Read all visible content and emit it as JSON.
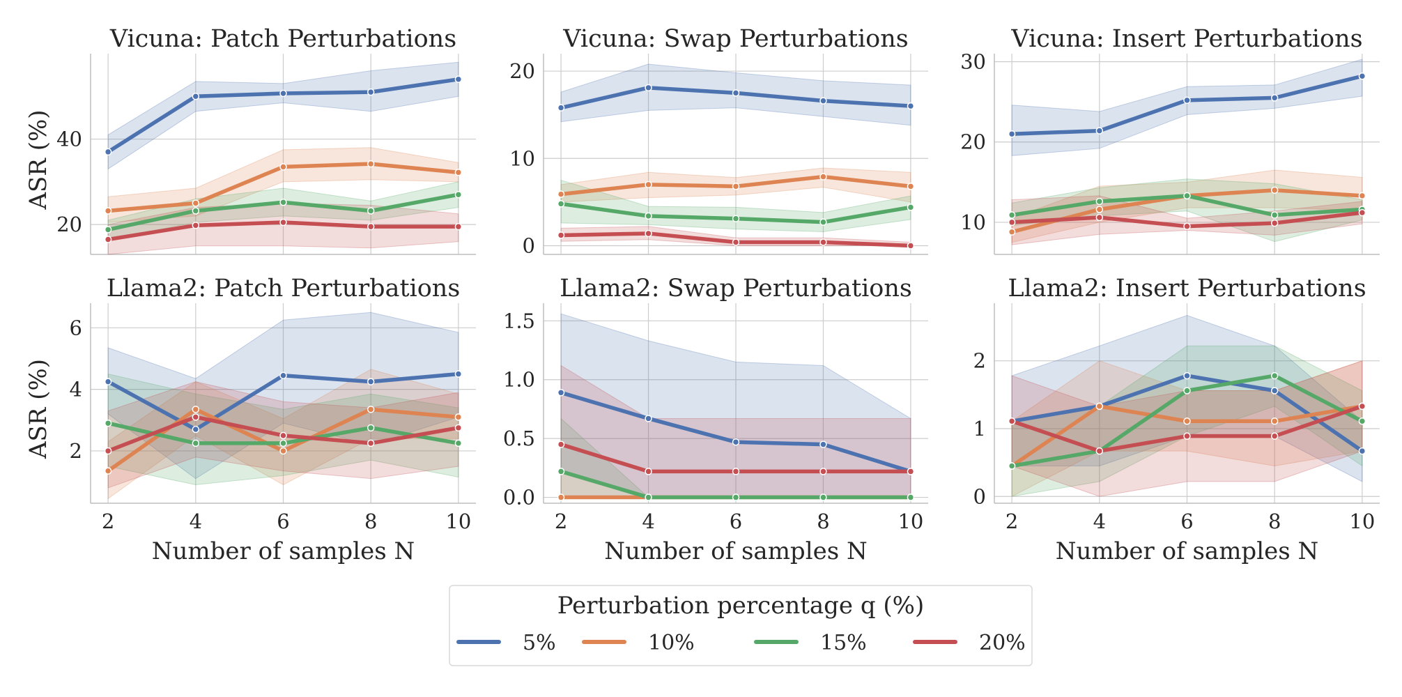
{
  "legend": {
    "title": "Perturbation percentage q (%)",
    "series_names": [
      "5%",
      "10%",
      "15%",
      "20%"
    ],
    "colors": [
      "#4c72b0",
      "#dd8452",
      "#55a868",
      "#c44e52"
    ]
  },
  "chart_data": [
    {
      "type": "line",
      "title": "Vicuna: Patch Perturbations",
      "xlabel": "",
      "ylabel": "ASR (%)",
      "x": [
        2,
        4,
        6,
        8,
        10
      ],
      "xlim": [
        1.6,
        10.4
      ],
      "ylim": [
        13,
        60
      ],
      "yticks": [
        20,
        40
      ],
      "xticks": [],
      "grid": true,
      "series": [
        {
          "name": "5%",
          "values": [
            37,
            50,
            50.7,
            51,
            54
          ],
          "lower": [
            33,
            46.5,
            48.5,
            46.5,
            50
          ],
          "upper": [
            41,
            53.5,
            53,
            56,
            58
          ]
        },
        {
          "name": "10%",
          "values": [
            23.2,
            25,
            33.5,
            34.2,
            32.2
          ],
          "lower": [
            20.5,
            22,
            30,
            30.5,
            30
          ],
          "upper": [
            26.5,
            28.5,
            37.5,
            38,
            34.5
          ]
        },
        {
          "name": "15%",
          "values": [
            18.8,
            23.2,
            25.2,
            23.2,
            27
          ],
          "lower": [
            16.5,
            20.5,
            22,
            21,
            24
          ],
          "upper": [
            21,
            26,
            28.5,
            25.5,
            30
          ]
        },
        {
          "name": "20%",
          "values": [
            16.5,
            19.8,
            20.5,
            19.5,
            19.5
          ],
          "lower": [
            13,
            15,
            15,
            14.5,
            16
          ],
          "upper": [
            20,
            24,
            25,
            24.5,
            22.5
          ]
        }
      ]
    },
    {
      "type": "line",
      "title": "Vicuna: Swap Perturbations",
      "xlabel": "",
      "ylabel": "",
      "x": [
        2,
        4,
        6,
        8,
        10
      ],
      "xlim": [
        1.6,
        10.4
      ],
      "ylim": [
        -1,
        22
      ],
      "yticks": [
        0,
        10,
        20
      ],
      "xticks": [],
      "grid": true,
      "series": [
        {
          "name": "5%",
          "values": [
            15.8,
            18.1,
            17.5,
            16.6,
            16
          ],
          "lower": [
            14.2,
            15.5,
            15.8,
            14.8,
            13.8
          ],
          "upper": [
            17.6,
            20.8,
            19.8,
            18.9,
            18.4
          ]
        },
        {
          "name": "10%",
          "values": [
            5.9,
            7,
            6.8,
            7.9,
            6.8
          ],
          "lower": [
            5,
            5.5,
            5.8,
            6.7,
            5
          ],
          "upper": [
            7,
            8.4,
            7.8,
            8.9,
            8.4
          ]
        },
        {
          "name": "15%",
          "values": [
            4.8,
            3.4,
            3.1,
            2.7,
            4.4
          ],
          "lower": [
            2.6,
            2.4,
            1.9,
            1.6,
            3
          ],
          "upper": [
            7.5,
            4.5,
            4.4,
            3.8,
            5.7
          ]
        },
        {
          "name": "20%",
          "values": [
            1.2,
            1.4,
            0.4,
            0.4,
            0
          ],
          "lower": [
            0.5,
            0.7,
            0,
            0,
            0
          ],
          "upper": [
            2,
            2.2,
            0.9,
            0.9,
            0.4
          ]
        }
      ]
    },
    {
      "type": "line",
      "title": "Vicuna: Insert Perturbations",
      "xlabel": "",
      "ylabel": "",
      "x": [
        2,
        4,
        6,
        8,
        10
      ],
      "xlim": [
        1.6,
        10.4
      ],
      "ylim": [
        6,
        31
      ],
      "yticks": [
        10,
        20,
        30
      ],
      "xticks": [],
      "grid": true,
      "series": [
        {
          "name": "5%",
          "values": [
            21,
            21.4,
            25.2,
            25.5,
            28.2
          ],
          "lower": [
            18.3,
            19.2,
            23.4,
            24.2,
            25.7
          ],
          "upper": [
            24.6,
            23.8,
            26.9,
            27.1,
            30.3
          ]
        },
        {
          "name": "10%",
          "values": [
            8.8,
            11.6,
            13.3,
            14,
            13.3
          ],
          "lower": [
            7.5,
            10,
            11.8,
            11.8,
            11.5
          ],
          "upper": [
            10.5,
            14.5,
            15,
            16.5,
            15.6
          ]
        },
        {
          "name": "15%",
          "values": [
            10.9,
            12.6,
            13.3,
            10.9,
            11.6
          ],
          "lower": [
            9.6,
            10.8,
            11.4,
            7.6,
            10.3
          ],
          "upper": [
            12.4,
            14.3,
            15.4,
            14.8,
            12.8
          ]
        },
        {
          "name": "20%",
          "values": [
            10,
            10.6,
            9.5,
            9.9,
            11.2
          ],
          "lower": [
            7.2,
            8.5,
            9,
            8.4,
            9.8
          ],
          "upper": [
            12.8,
            13.3,
            10.5,
            11.4,
            12.6
          ]
        }
      ]
    },
    {
      "type": "line",
      "title": "Llama2: Patch Perturbations",
      "xlabel": "Number of samples N",
      "ylabel": "ASR (%)",
      "x": [
        2,
        4,
        6,
        8,
        10
      ],
      "xlim": [
        1.6,
        10.4
      ],
      "ylim": [
        0.3,
        6.8
      ],
      "yticks": [
        2,
        4,
        6
      ],
      "xticks": [
        2,
        4,
        6,
        8,
        10
      ],
      "grid": true,
      "series": [
        {
          "name": "5%",
          "values": [
            4.25,
            2.7,
            4.45,
            4.25,
            4.5
          ],
          "lower": [
            3.2,
            1.1,
            2.9,
            2.2,
            3.1
          ],
          "upper": [
            5.35,
            4.35,
            6.25,
            6.5,
            5.85
          ]
        },
        {
          "name": "10%",
          "values": [
            1.35,
            3.35,
            2.0,
            3.35,
            3.1
          ],
          "lower": [
            0.45,
            2.5,
            0.9,
            2.4,
            2.4
          ],
          "upper": [
            2.3,
            4.25,
            3.05,
            4.65,
            3.85
          ]
        },
        {
          "name": "15%",
          "values": [
            2.9,
            2.25,
            2.25,
            2.75,
            2.25
          ],
          "lower": [
            1.5,
            0.9,
            1.2,
            1.7,
            1.15
          ],
          "upper": [
            4.5,
            3.85,
            3.35,
            3.85,
            3.4
          ]
        },
        {
          "name": "20%",
          "values": [
            2.0,
            3.1,
            2.5,
            2.25,
            2.75
          ],
          "lower": [
            0.8,
            1.8,
            1.35,
            1.1,
            1.5
          ],
          "upper": [
            3.3,
            4.25,
            3.6,
            3.4,
            3.9
          ]
        }
      ]
    },
    {
      "type": "line",
      "title": "Llama2: Swap Perturbations",
      "xlabel": "Number of samples N",
      "ylabel": "",
      "x": [
        2,
        4,
        6,
        8,
        10
      ],
      "xlim": [
        1.6,
        10.4
      ],
      "ylim": [
        -0.05,
        1.65
      ],
      "yticks": [
        0.0,
        0.5,
        1.0,
        1.5
      ],
      "xticks": [
        2,
        4,
        6,
        8,
        10
      ],
      "grid": true,
      "series": [
        {
          "name": "5%",
          "values": [
            0.89,
            0.67,
            0.47,
            0.45,
            0.22
          ],
          "lower": [
            0.22,
            0,
            0,
            0,
            0
          ],
          "upper": [
            1.56,
            1.33,
            1.15,
            1.12,
            0.67
          ]
        },
        {
          "name": "10%",
          "values": [
            0,
            0,
            0,
            0,
            0
          ],
          "lower": [
            0,
            0,
            0,
            0,
            0
          ],
          "upper": [
            0,
            0,
            0,
            0,
            0
          ]
        },
        {
          "name": "15%",
          "values": [
            0.22,
            0,
            0,
            0,
            0
          ],
          "lower": [
            0,
            0,
            0,
            0,
            0
          ],
          "upper": [
            0.67,
            0,
            0,
            0,
            0
          ]
        },
        {
          "name": "20%",
          "values": [
            0.45,
            0.22,
            0.22,
            0.22,
            0.22
          ],
          "lower": [
            0,
            0,
            0,
            0,
            0
          ],
          "upper": [
            1.12,
            0.67,
            0.67,
            0.67,
            0.67
          ]
        }
      ]
    },
    {
      "type": "line",
      "title": "Llama2: Insert Perturbations",
      "xlabel": "Number of samples N",
      "ylabel": "",
      "x": [
        2,
        4,
        6,
        8,
        10
      ],
      "xlim": [
        1.6,
        10.4
      ],
      "ylim": [
        -0.1,
        2.85
      ],
      "yticks": [
        0,
        1,
        2
      ],
      "xticks": [
        2,
        4,
        6,
        8,
        10
      ],
      "grid": true,
      "series": [
        {
          "name": "5%",
          "values": [
            1.11,
            1.33,
            1.78,
            1.56,
            0.67
          ],
          "lower": [
            0.45,
            0.45,
            0.89,
            0.89,
            0.22
          ],
          "upper": [
            1.78,
            2.22,
            2.67,
            2.22,
            1.11
          ]
        },
        {
          "name": "10%",
          "values": [
            0.45,
            1.33,
            1.11,
            1.11,
            1.33
          ],
          "lower": [
            0,
            0.67,
            0.67,
            0.45,
            0.67
          ],
          "upper": [
            1.11,
            2.0,
            1.56,
            1.56,
            2.0
          ]
        },
        {
          "name": "15%",
          "values": [
            0.45,
            0.67,
            1.56,
            1.78,
            1.11
          ],
          "lower": [
            0,
            0.22,
            0.89,
            1.33,
            0.45
          ],
          "upper": [
            1.11,
            1.33,
            2.22,
            2.22,
            1.56
          ]
        },
        {
          "name": "20%",
          "values": [
            1.11,
            0.67,
            0.89,
            0.89,
            1.33
          ],
          "lower": [
            0.45,
            0,
            0.22,
            0.22,
            0.67
          ],
          "upper": [
            1.78,
            1.33,
            1.56,
            1.56,
            2.0
          ]
        }
      ]
    }
  ]
}
